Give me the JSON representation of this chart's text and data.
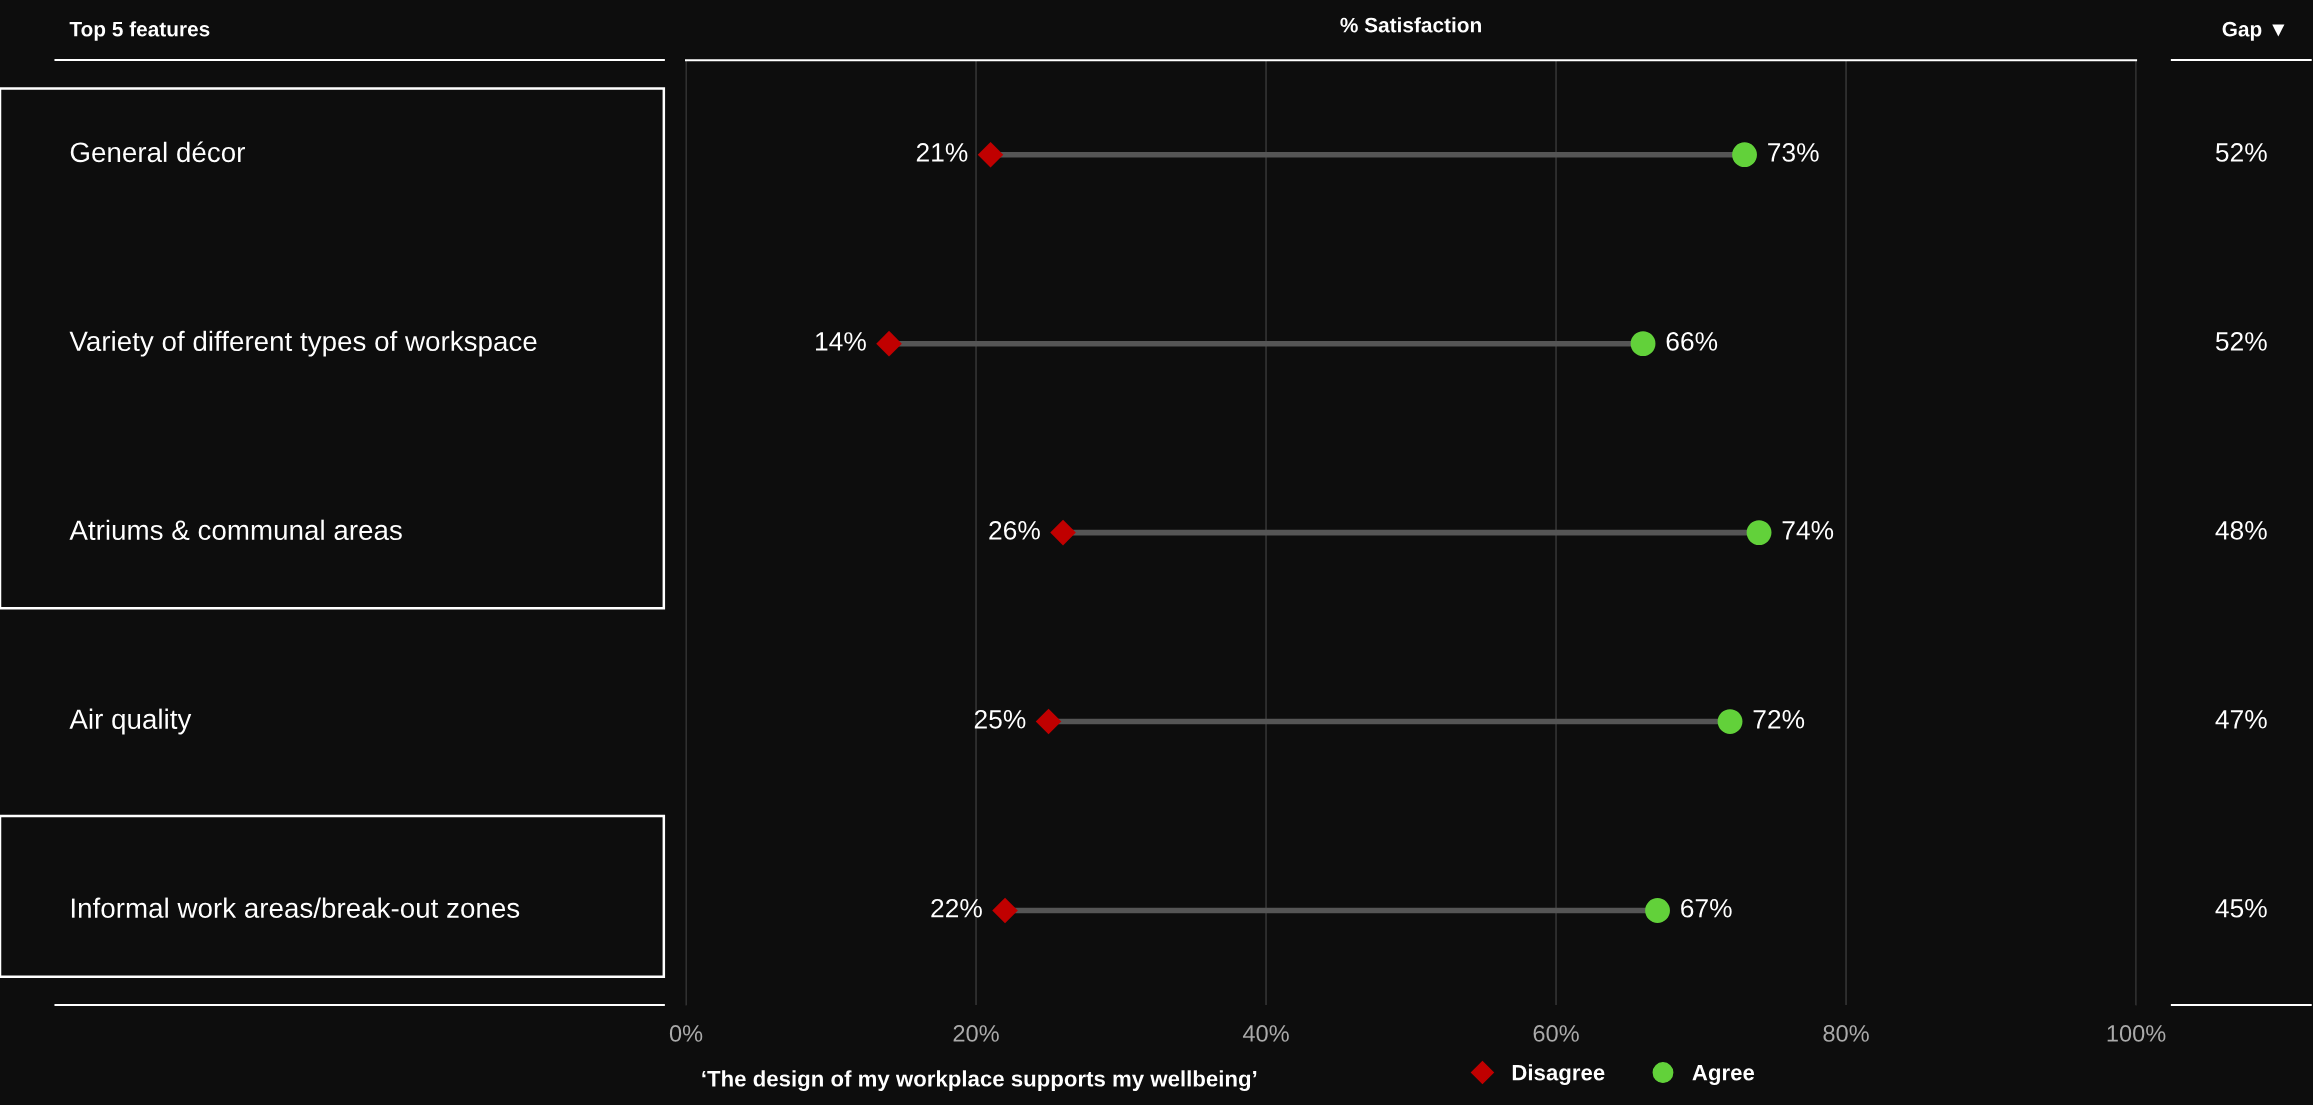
{
  "chart_data": {
    "type": "scatter",
    "orientation": "horizontal",
    "title": "% Satisfaction",
    "categories": [
      "General décor",
      "Variety of different types of workspace",
      "Atriums & communal areas",
      "Air quality",
      "Informal work areas/break-out zones"
    ],
    "series": [
      {
        "name": "Disagree",
        "color": "#c00000",
        "marker": "diamond",
        "values": [
          21,
          14,
          26,
          25,
          22
        ],
        "value_labels": [
          "21%",
          "14%",
          "26%",
          "25%",
          "22%"
        ]
      },
      {
        "name": "Agree",
        "color": "#62d13a",
        "marker": "circle",
        "values": [
          73,
          66,
          74,
          72,
          67
        ],
        "value_labels": [
          "73%",
          "66%",
          "74%",
          "72%",
          "67%"
        ]
      }
    ],
    "xlim": [
      0,
      100
    ],
    "xticks": [
      {
        "value": 0,
        "label": "0%"
      },
      {
        "value": 20,
        "label": "20%"
      },
      {
        "value": 40,
        "label": "40%"
      },
      {
        "value": 60,
        "label": "60%"
      },
      {
        "value": 80,
        "label": "80%"
      },
      {
        "value": 100,
        "label": "100%"
      }
    ],
    "grid": "x",
    "legend": "bottom",
    "tick_labels": "x",
    "annotations": [
      "Top 5 features",
      "Gap ▼",
      "52%",
      "52%",
      "48%",
      "47%",
      "45%",
      "‘The design of my workplace supports my wellbeing’"
    ]
  }
}
